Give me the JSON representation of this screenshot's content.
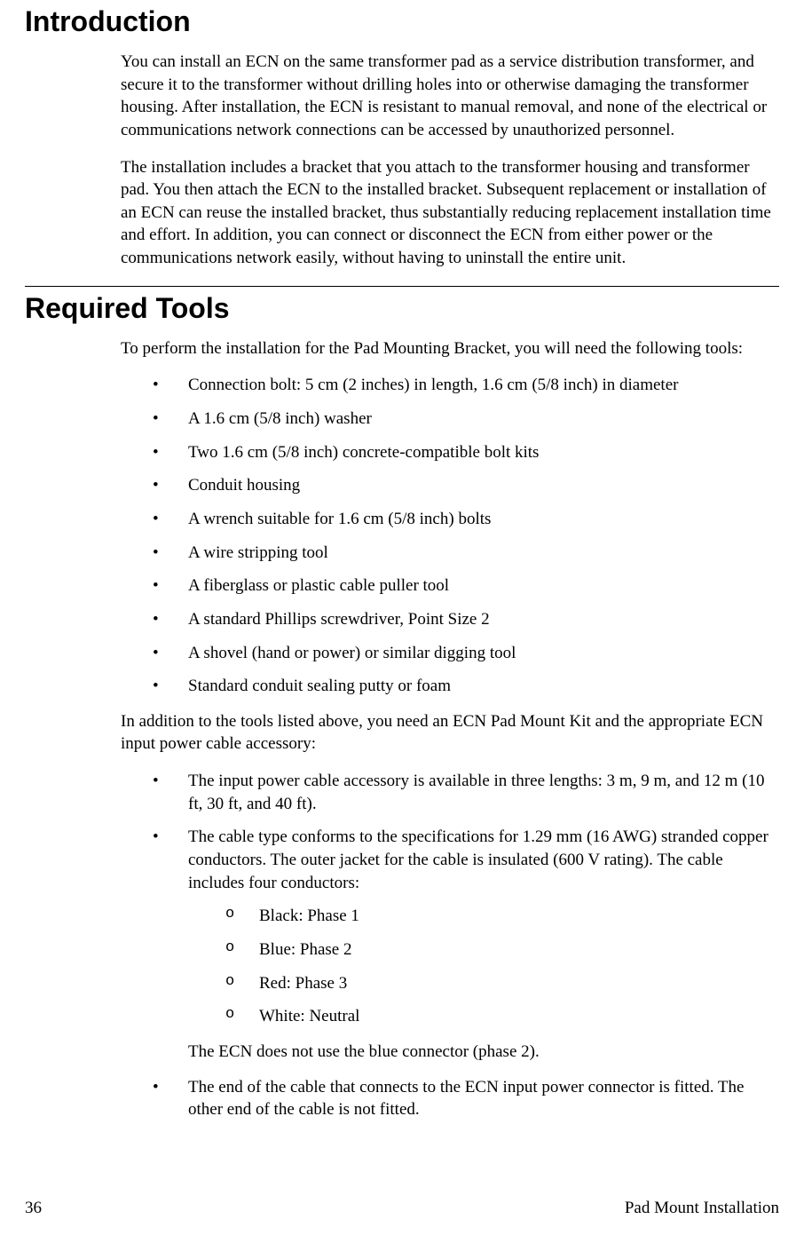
{
  "sections": {
    "intro": {
      "heading": "Introduction",
      "para1": "You can install an ECN on the same transformer pad as a service distribution transformer, and secure it to the transformer without drilling holes into or otherwise damaging the transformer housing.  After installation, the ECN is resistant to manual removal, and none of the electrical or communications network connections can be accessed by unauthorized personnel.",
      "para2": "The installation includes a bracket that you attach to the transformer housing and transformer pad.  You then attach the ECN to the installed bracket.  Subsequent replacement or installation of an ECN can reuse the installed bracket, thus substantially reducing replacement installation time and effort.  In addition, you can connect or disconnect the ECN from either power or the communications network easily, without having to uninstall the entire unit."
    },
    "tools": {
      "heading": "Required Tools",
      "intro": "To perform the installation for the Pad Mounting Bracket, you will need the following tools:",
      "items": [
        "Connection bolt:  5 cm (2 inches) in length, 1.6 cm (5/8 inch) in diameter",
        "A 1.6 cm (5/8 inch) washer",
        "Two 1.6 cm (5/8 inch) concrete-compatible bolt kits",
        "Conduit housing",
        "A wrench suitable for 1.6 cm (5/8 inch) bolts",
        "A wire stripping tool",
        "A fiberglass or plastic cable puller tool",
        "A standard Phillips screwdriver, Point Size 2",
        "A shovel (hand or power) or similar digging tool",
        "Standard conduit sealing putty or foam"
      ],
      "additional_intro": "In addition to the tools listed above, you need an ECN Pad Mount Kit and the appropriate ECN input power cable accessory:",
      "additional": {
        "item1": "The input power cable accessory is available in three lengths:  3 m, 9 m, and 12 m (10 ft, 30 ft, and 40 ft).",
        "item2": "The cable type conforms to the specifications for 1.29 mm (16 AWG) stranded copper conductors.  The outer jacket for the cable is insulated (600 V rating).  The cable includes four conductors:",
        "conductors": [
          "Black:  Phase 1",
          "Blue:  Phase 2",
          "Red:  Phase 3",
          "White:  Neutral"
        ],
        "item2_note": "The ECN does not use the blue connector (phase 2).",
        "item3": "The end of the cable that connects to the ECN input power connector is fitted.  The other end of the cable is not fitted."
      }
    }
  },
  "footer": {
    "page_number": "36",
    "title": "Pad Mount Installation"
  }
}
